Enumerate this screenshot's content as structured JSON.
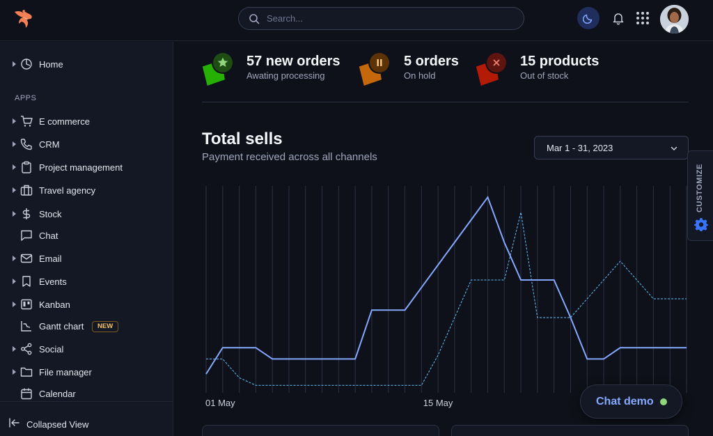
{
  "header": {
    "search_placeholder": "Search...",
    "icons": {
      "logo": "phoenix-logo",
      "search": "search-icon",
      "theme": "moon-icon",
      "notifications": "bell-icon",
      "apps": "grid-icon",
      "avatar": "avatar"
    },
    "colors": {
      "accent": "#3874ff",
      "logo": "#f37f54"
    }
  },
  "sidebar": {
    "home": {
      "label": "Home",
      "icon": "clock-icon"
    },
    "section_label": "APPS",
    "items": [
      {
        "label": "E commerce",
        "icon": "cart-icon",
        "expandable": true
      },
      {
        "label": "CRM",
        "icon": "phone-icon",
        "expandable": true
      },
      {
        "label": "Project management",
        "icon": "clipboard-icon",
        "expandable": true
      },
      {
        "label": "Travel agency",
        "icon": "briefcase-icon",
        "expandable": true
      },
      {
        "label": "Stock",
        "icon": "dollar-icon",
        "expandable": true
      },
      {
        "label": "Chat",
        "icon": "message-icon",
        "expandable": false
      },
      {
        "label": "Email",
        "icon": "mail-icon",
        "expandable": true
      },
      {
        "label": "Events",
        "icon": "bookmark-icon",
        "expandable": true
      },
      {
        "label": "Kanban",
        "icon": "kanban-icon",
        "expandable": true
      },
      {
        "label": "Gantt chart",
        "icon": "gantt-icon",
        "expandable": false,
        "badge": "NEW"
      },
      {
        "label": "Social",
        "icon": "share-icon",
        "expandable": true
      },
      {
        "label": "File manager",
        "icon": "folder-icon",
        "expandable": true
      },
      {
        "label": "Calendar",
        "icon": "calendar-icon",
        "expandable": false
      }
    ],
    "collapsed_label": "Collapsed View"
  },
  "stats": [
    {
      "value": "57 new orders",
      "caption": "Awating processing",
      "icon": "star-icon",
      "color": "#25b003"
    },
    {
      "value": "5 orders",
      "caption": "On hold",
      "icon": "pause-icon",
      "color": "#e5780b"
    },
    {
      "value": "15 products",
      "caption": "Out of stock",
      "icon": "close-icon",
      "color": "#ec1f00"
    }
  ],
  "sales": {
    "title": "Total sells",
    "subtitle": "Payment received across all channels",
    "date_range": "Mar 1 - 31, 2023"
  },
  "customize": {
    "label": "CUSTOMIZE",
    "icon": "gear-icon"
  },
  "chat_demo": {
    "label": "Chat demo",
    "status_color": "#90d67f"
  },
  "chart_data": {
    "type": "line",
    "x": [
      1,
      2,
      3,
      4,
      5,
      6,
      7,
      8,
      9,
      10,
      11,
      12,
      13,
      14,
      15,
      16,
      17,
      18,
      19,
      20,
      21,
      22,
      23,
      24,
      25,
      26,
      27,
      28,
      29,
      30
    ],
    "x_tick_labels": [
      "01 May",
      "15 May"
    ],
    "x_tick_positions": [
      1,
      15
    ],
    "series": [
      {
        "style": "solid",
        "color": "#85a9ff",
        "values": [
          5,
          12,
          12,
          12,
          9,
          9,
          9,
          9,
          9,
          9,
          22,
          22,
          22,
          28,
          34,
          40,
          46,
          52,
          40,
          30,
          30,
          30,
          20,
          9,
          9,
          12,
          12,
          12,
          12,
          12
        ]
      },
      {
        "style": "dashed",
        "color": "#60c6ff",
        "values": [
          9,
          9,
          4,
          2,
          2,
          2,
          2,
          2,
          2,
          2,
          2,
          2,
          2,
          2,
          10,
          20,
          30,
          30,
          30,
          48,
          20,
          20,
          20,
          25,
          30,
          35,
          30,
          25,
          25,
          25
        ]
      }
    ],
    "ylim": [
      0,
      55
    ],
    "grid": "vertical"
  }
}
